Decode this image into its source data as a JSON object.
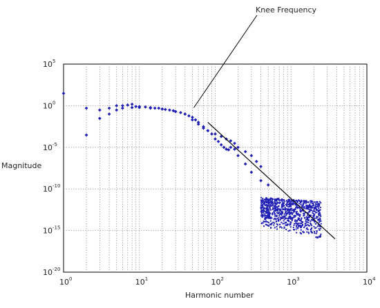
{
  "chart_data": {
    "type": "scatter",
    "title": "",
    "xlabel": "Harmonic number",
    "ylabel": "Magnitude",
    "x_scale": "log",
    "y_scale": "log",
    "xlim": [
      1,
      10000
    ],
    "ylim": [
      1e-20,
      100000
    ],
    "grid": true,
    "x_ticks": [
      {
        "value": 1,
        "base": "10",
        "exp": "0"
      },
      {
        "value": 10,
        "base": "10",
        "exp": "1"
      },
      {
        "value": 100,
        "base": "10",
        "exp": "2"
      },
      {
        "value": 1000,
        "base": "10",
        "exp": "3"
      },
      {
        "value": 10000,
        "base": "10",
        "exp": "4"
      }
    ],
    "y_ticks": [
      {
        "value": 100000,
        "base": "10",
        "exp": "5"
      },
      {
        "value": 1,
        "base": "10",
        "exp": "0"
      },
      {
        "value": 1e-05,
        "base": "10",
        "exp": "-5"
      },
      {
        "value": 1e-10,
        "base": "10",
        "exp": "-10"
      },
      {
        "value": 1e-15,
        "base": "10",
        "exp": "-15"
      },
      {
        "value": 1e-20,
        "base": "10",
        "exp": "-20"
      }
    ],
    "series": [
      {
        "color": "#1f1fb4",
        "x": [
          1,
          2,
          3,
          4,
          5,
          6,
          7,
          8,
          9,
          10,
          12,
          14,
          16,
          18,
          20,
          22,
          25,
          28,
          30,
          35,
          40,
          45,
          50,
          55,
          60,
          70,
          80,
          90,
          100,
          110,
          120,
          130,
          140,
          150,
          160,
          180,
          200,
          250,
          300,
          400,
          500
        ],
        "y": [
          30,
          0.5,
          0.3,
          0.5,
          1,
          1,
          1.2,
          1.5,
          0.8,
          0.8,
          0.7,
          0.6,
          0.5,
          0.5,
          0.4,
          0.35,
          0.3,
          0.25,
          0.2,
          0.15,
          0.1,
          0.06,
          0.04,
          0.02,
          0.01,
          0.003,
          0.001,
          0.0004,
          0.0001,
          5e-05,
          2e-05,
          1e-05,
          6e-06,
          5e-06,
          1e-05,
          6e-06,
          1e-06,
          1e-07,
          1e-08,
          1e-09,
          3e-10
        ]
      },
      {
        "color": "#1f1fb4",
        "x": [
          2,
          3,
          4,
          5,
          6,
          8,
          10,
          14,
          20,
          30,
          40,
          50,
          60,
          70,
          80,
          100,
          120,
          140,
          160,
          180,
          200,
          250,
          300,
          350,
          400
        ],
        "y": [
          0.0003,
          0.03,
          0.1,
          0.3,
          0.5,
          0.6,
          0.6,
          0.5,
          0.4,
          0.2,
          0.1,
          0.02,
          0.006,
          0.002,
          0.001,
          0.0004,
          0.0002,
          0.0001,
          6e-05,
          3e-05,
          1e-05,
          3e-06,
          1e-06,
          2e-07,
          5e-08
        ]
      }
    ],
    "noise_band": {
      "x_range": [
        400,
        2500
      ],
      "y_range": [
        1e-16,
        1e-11
      ],
      "color": "#1f1fb4"
    },
    "reference_line": {
      "x": [
        80,
        3800
      ],
      "y": [
        0.01,
        1e-16
      ]
    },
    "annotation": {
      "text": "Knee Frequency",
      "pointer_x": 50,
      "pointer_y": 1
    }
  }
}
